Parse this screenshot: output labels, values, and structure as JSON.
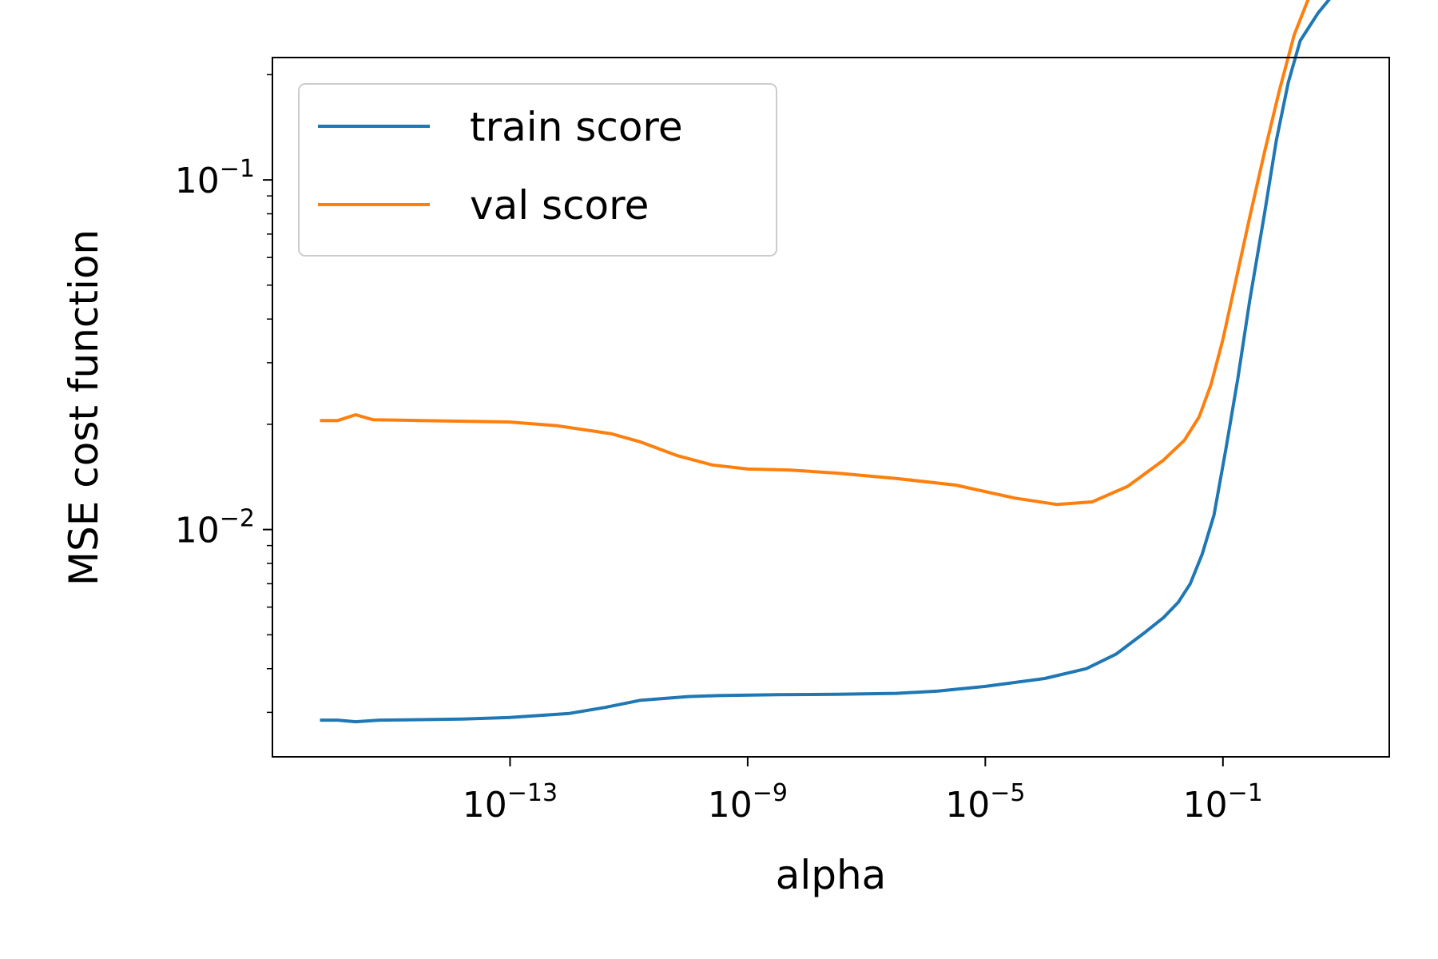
{
  "chart_data": {
    "type": "line",
    "title": "",
    "xlabel": "alpha",
    "ylabel": "MSE cost function",
    "xscale": "log",
    "yscale": "log",
    "x_exponent_range": [
      -17.0,
      1.8
    ],
    "y_exponent_range": [
      -2.65,
      -0.65
    ],
    "x_ticks": [
      {
        "base": "10",
        "exp": "−13",
        "value_exp": -13
      },
      {
        "base": "10",
        "exp": "−9",
        "value_exp": -9
      },
      {
        "base": "10",
        "exp": "−5",
        "value_exp": -5
      },
      {
        "base": "10",
        "exp": "−1",
        "value_exp": -1
      }
    ],
    "y_ticks": [
      {
        "base": "10",
        "exp": "−2",
        "value_exp": -2
      },
      {
        "base": "10",
        "exp": "−1",
        "value_exp": -1
      }
    ],
    "legend": {
      "placement": "upper-left"
    },
    "grid": false,
    "series": [
      {
        "name": "train score",
        "color": "#1f77b4",
        "points": [
          [
            -16.2,
            0.00285
          ],
          [
            -15.9,
            0.00285
          ],
          [
            -15.6,
            0.00282
          ],
          [
            -15.2,
            0.00285
          ],
          [
            -14.5,
            0.00286
          ],
          [
            -13.8,
            0.00287
          ],
          [
            -13.0,
            0.0029
          ],
          [
            -12.0,
            0.00298
          ],
          [
            -11.4,
            0.0031
          ],
          [
            -10.8,
            0.00325
          ],
          [
            -10.0,
            0.00333
          ],
          [
            -9.5,
            0.00335
          ],
          [
            -8.5,
            0.00337
          ],
          [
            -7.5,
            0.00338
          ],
          [
            -6.5,
            0.0034
          ],
          [
            -5.8,
            0.00345
          ],
          [
            -5.0,
            0.00356
          ],
          [
            -4.0,
            0.00375
          ],
          [
            -3.3,
            0.004
          ],
          [
            -2.8,
            0.0044
          ],
          [
            -2.3,
            0.0051
          ],
          [
            -2.0,
            0.0056
          ],
          [
            -1.75,
            0.0062
          ],
          [
            -1.55,
            0.007
          ],
          [
            -1.35,
            0.0085
          ],
          [
            -1.15,
            0.011
          ],
          [
            -0.95,
            0.017
          ],
          [
            -0.75,
            0.027
          ],
          [
            -0.55,
            0.045
          ],
          [
            -0.3,
            0.08
          ],
          [
            -0.1,
            0.13
          ],
          [
            0.1,
            0.19
          ],
          [
            0.3,
            0.25
          ],
          [
            0.6,
            0.3
          ],
          [
            0.8,
            0.33
          ]
        ]
      },
      {
        "name": "val score",
        "color": "#ff7f0e",
        "points": [
          [
            -16.2,
            0.0205
          ],
          [
            -15.9,
            0.0205
          ],
          [
            -15.6,
            0.0213
          ],
          [
            -15.3,
            0.0206
          ],
          [
            -14.5,
            0.0205
          ],
          [
            -13.0,
            0.0203
          ],
          [
            -12.2,
            0.0198
          ],
          [
            -11.3,
            0.0188
          ],
          [
            -10.8,
            0.0178
          ],
          [
            -10.2,
            0.0163
          ],
          [
            -9.6,
            0.0153
          ],
          [
            -9.0,
            0.0149
          ],
          [
            -8.3,
            0.0148
          ],
          [
            -7.5,
            0.0145
          ],
          [
            -6.5,
            0.014
          ],
          [
            -5.5,
            0.0134
          ],
          [
            -4.5,
            0.0123
          ],
          [
            -3.8,
            0.0118
          ],
          [
            -3.2,
            0.012
          ],
          [
            -2.6,
            0.0133
          ],
          [
            -2.0,
            0.0158
          ],
          [
            -1.65,
            0.018
          ],
          [
            -1.4,
            0.021
          ],
          [
            -1.2,
            0.026
          ],
          [
            -1.0,
            0.035
          ],
          [
            -0.8,
            0.05
          ],
          [
            -0.55,
            0.078
          ],
          [
            -0.3,
            0.12
          ],
          [
            -0.05,
            0.18
          ],
          [
            0.2,
            0.26
          ],
          [
            0.5,
            0.35
          ],
          [
            0.8,
            0.4
          ]
        ]
      }
    ]
  }
}
